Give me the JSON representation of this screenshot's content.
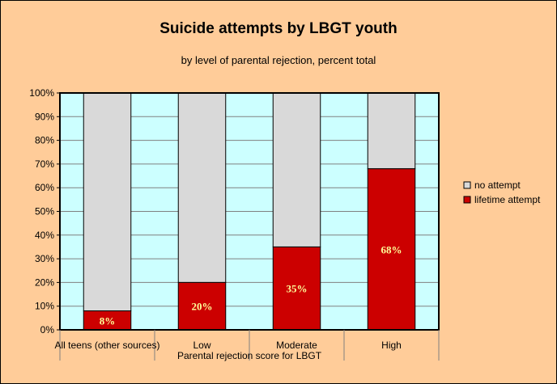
{
  "chart_data": {
    "type": "bar",
    "stacked": true,
    "title": "Suicide attempts by LBGT youth",
    "subtitle": "by level of parental rejection, percent total",
    "xlabel": "Parental rejection score for LBGT",
    "ylabel": "",
    "categories": [
      "All teens (other sources)",
      "Low",
      "Moderate",
      "High"
    ],
    "series": [
      {
        "name": "lifetime attempt",
        "values": [
          8,
          20,
          35,
          68
        ],
        "color": "#cc0000",
        "data_labels": [
          "8%",
          "20%",
          "35%",
          "68%"
        ]
      },
      {
        "name": "no attempt",
        "values": [
          92,
          80,
          65,
          32
        ],
        "color": "#d9d9d9"
      }
    ],
    "legend_order": [
      "no attempt",
      "lifetime attempt"
    ],
    "legend_position": "right",
    "ylim": [
      0,
      100
    ],
    "y_ticks": [
      "0%",
      "10%",
      "20%",
      "30%",
      "40%",
      "50%",
      "60%",
      "70%",
      "80%",
      "90%",
      "100%"
    ],
    "grid": true,
    "colors": {
      "background": "#ffcc99",
      "plot_area": "#ccffff",
      "gridline": "#808080",
      "data_label": "#ffff99"
    }
  }
}
